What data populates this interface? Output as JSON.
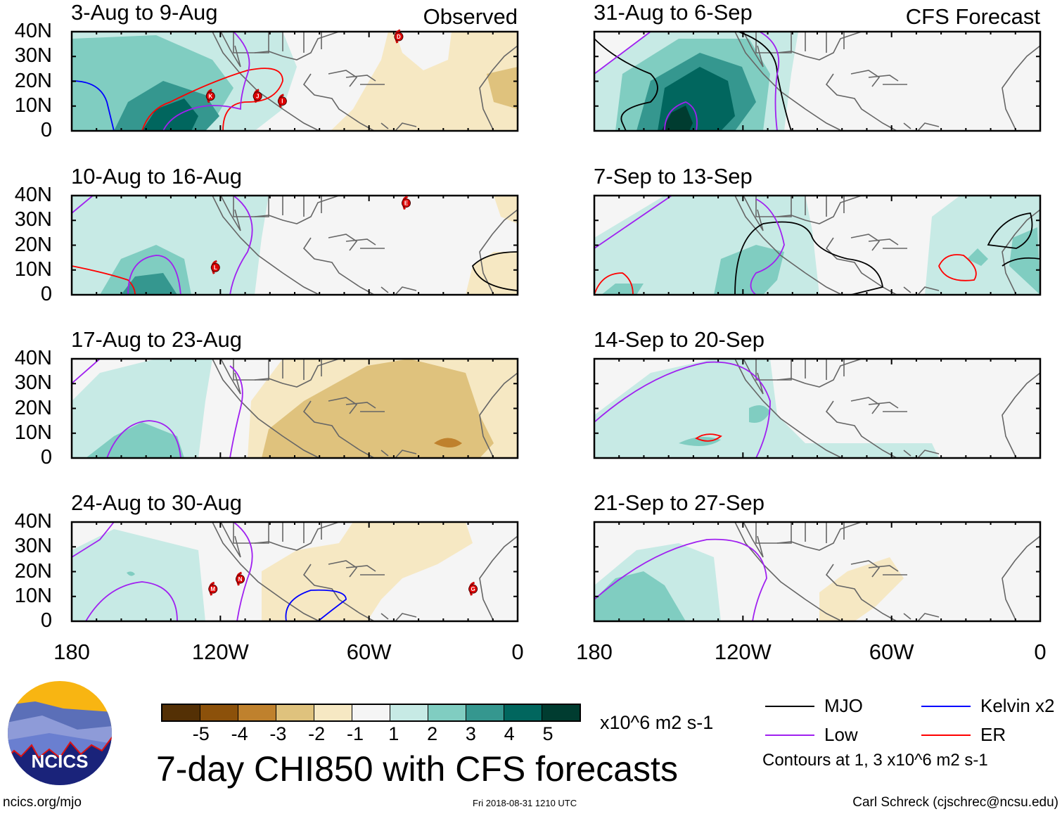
{
  "title": "7-day CHI850 with CFS forecasts",
  "footer": {
    "left": "ncics.org/mjo",
    "center": "Fri 2018-08-31 1210 UTC",
    "right": "Carl Schreck (cjschrec@ncsu.edu)"
  },
  "logo_text": "NCICS",
  "chart_data": {
    "type": "heatmap",
    "variable": "7-day CHI850",
    "units": "x10^6 m2 s-1",
    "lat_range": [
      0,
      40
    ],
    "lon_range": [
      -180,
      0
    ],
    "lat_ticks": [
      "40N",
      "30N",
      "20N",
      "10N",
      "0"
    ],
    "lon_ticks": [
      "180",
      "120W",
      "60W",
      "0"
    ],
    "colorbar": {
      "ticks": [
        "-5",
        "-4",
        "-3",
        "-2",
        "-1",
        "1",
        "2",
        "3",
        "4",
        "5"
      ],
      "colors": [
        "#543005",
        "#8c510a",
        "#bf812d",
        "#dfc27d",
        "#f6e8c3",
        "#f5f5f5",
        "#c7eae5",
        "#80cdc1",
        "#35978f",
        "#01665e",
        "#003c30"
      ]
    },
    "legend": {
      "items": [
        {
          "label": "MJO",
          "color": "#000000"
        },
        {
          "label": "Kelvin x2",
          "color": "#0000ff"
        },
        {
          "label": "Low",
          "color": "#a020f0"
        },
        {
          "label": "ER",
          "color": "#ff0000"
        }
      ],
      "note": "Contours at 1, 3 x10^6 m2 s-1"
    },
    "columns": [
      {
        "label": "Observed"
      },
      {
        "label": "CFS Forecast"
      }
    ],
    "panels": [
      {
        "title": "3-Aug to 9-Aug",
        "column": 0,
        "storms": [
          {
            "id": "D",
            "lat": 38,
            "lon": -48
          },
          {
            "id": "K",
            "lat": 14,
            "lon": -124
          },
          {
            "id": "J",
            "lat": 14,
            "lon": -105
          },
          {
            "id": "I",
            "lat": 12,
            "lon": -95
          }
        ]
      },
      {
        "title": "10-Aug to 16-Aug",
        "column": 0,
        "storms": [
          {
            "id": "E",
            "lat": 37,
            "lon": -45
          },
          {
            "id": "L",
            "lat": 11,
            "lon": -122
          }
        ]
      },
      {
        "title": "17-Aug to 23-Aug",
        "column": 0,
        "storms": []
      },
      {
        "title": "24-Aug to 30-Aug",
        "column": 0,
        "storms": [
          {
            "id": "M",
            "lat": 13,
            "lon": -123
          },
          {
            "id": "N",
            "lat": 17,
            "lon": -112
          },
          {
            "id": "G",
            "lat": 13,
            "lon": -18
          }
        ]
      },
      {
        "title": "31-Aug to 6-Sep",
        "column": 1,
        "storms": []
      },
      {
        "title": "7-Sep to 13-Sep",
        "column": 1,
        "storms": []
      },
      {
        "title": "14-Sep to 20-Sep",
        "column": 1,
        "storms": []
      },
      {
        "title": "21-Sep to 27-Sep",
        "column": 1,
        "storms": []
      }
    ]
  }
}
